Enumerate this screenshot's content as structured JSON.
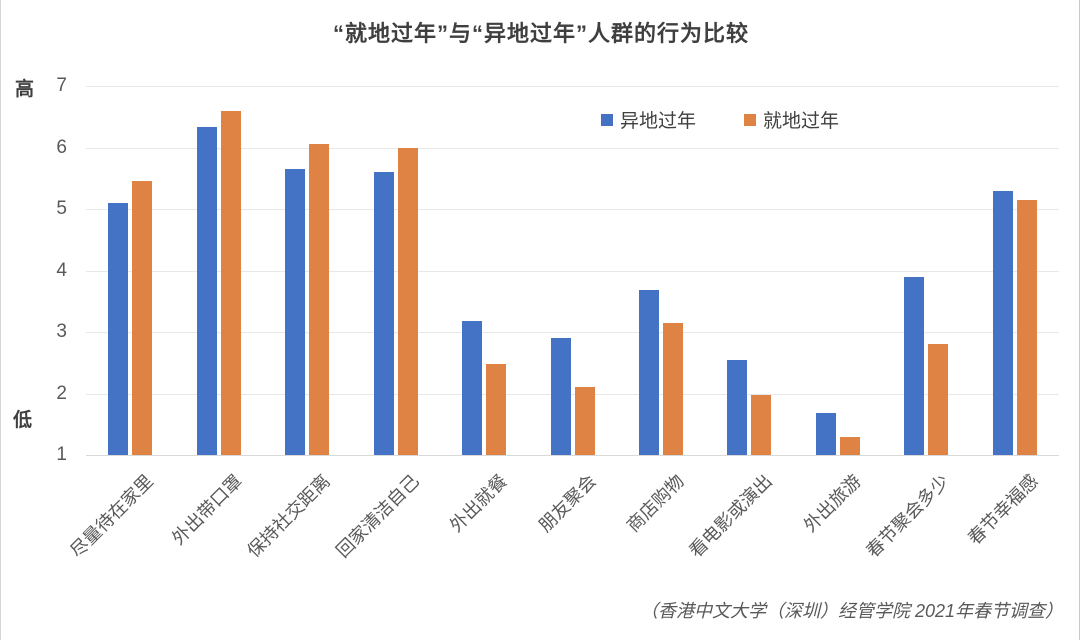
{
  "title": "“就地过年”与“异地过年”人群的行为比较",
  "source_note": "（香港中文大学（深圳）经管学院 2021年春节调查）",
  "y_axis": {
    "high_label": "高",
    "low_label": "低",
    "ticks": [
      7,
      6,
      5,
      4,
      3,
      2,
      1
    ]
  },
  "colors": {
    "series_yidi": "#4472C4",
    "series_jiudi": "#DE8344",
    "gridline": "#E8E8E8",
    "baseline": "#D9D9D9",
    "title_text": "#3F3F3F",
    "axis_text": "#595959"
  },
  "chart_data": {
    "type": "bar",
    "title": "“就地过年”与“异地过年”人群的行为比较",
    "categories": [
      "尽量待在家里",
      "外出带口罩",
      "保持社交距离",
      "回家清洁自己",
      "外出就餐",
      "朋友聚会",
      "商店购物",
      "看电影或演出",
      "外出旅游",
      "春节聚会多少",
      "春节幸福感"
    ],
    "series": [
      {
        "name": "异地过年",
        "color": "#4472C4",
        "values": [
          5.1,
          6.33,
          5.65,
          5.6,
          3.18,
          2.9,
          3.68,
          2.55,
          1.68,
          3.9,
          5.3
        ]
      },
      {
        "name": "就地过年",
        "color": "#DE8344",
        "values": [
          5.45,
          6.6,
          6.05,
          6.0,
          2.48,
          2.1,
          3.15,
          1.98,
          1.3,
          2.8,
          5.15
        ]
      }
    ],
    "ylim": [
      1,
      7
    ],
    "yticks": [
      1,
      2,
      3,
      4,
      5,
      6,
      7
    ],
    "xlabel": "",
    "ylabel": "",
    "grid": true,
    "legend_position": "top-inside"
  }
}
